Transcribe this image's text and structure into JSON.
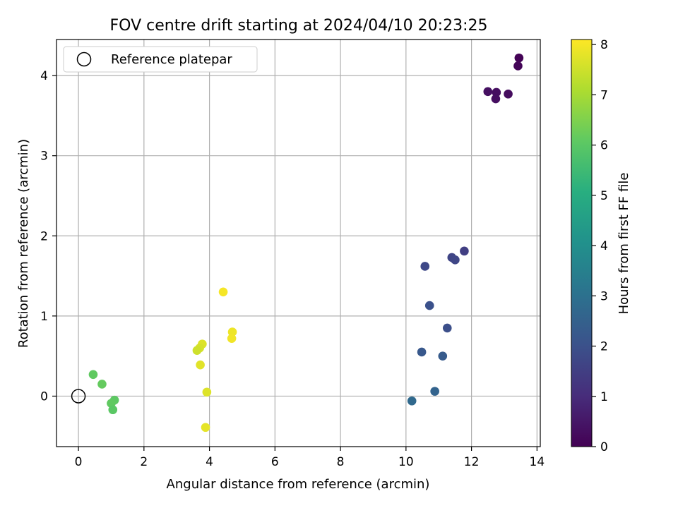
{
  "chart_data": {
    "type": "scatter",
    "title": "FOV centre drift starting at 2024/04/10 20:23:25",
    "xlabel": "Angular distance from reference (arcmin)",
    "ylabel": "Rotation from reference (arcmin)",
    "xlim": [
      -0.67,
      14.1
    ],
    "ylim": [
      -0.63,
      4.45
    ],
    "xticks": [
      "0",
      "2",
      "4",
      "6",
      "8",
      "10",
      "12",
      "14"
    ],
    "yticks": [
      "0",
      "1",
      "2",
      "3",
      "4"
    ],
    "grid": true,
    "legend": {
      "position": "top-left",
      "entries": [
        "Reference platepar"
      ]
    },
    "colorbar": {
      "label": "Hours from first FF file",
      "range": [
        0,
        8.1
      ],
      "ticks": [
        "0",
        "1",
        "2",
        "3",
        "4",
        "5",
        "6",
        "7",
        "8"
      ],
      "colormap": "viridis"
    },
    "reference_point": {
      "x": 0,
      "y": 0
    },
    "points": [
      {
        "x": 13.45,
        "y": 4.22,
        "h": 0.05
      },
      {
        "x": 13.42,
        "y": 4.12,
        "h": 0.1
      },
      {
        "x": 12.5,
        "y": 3.8,
        "h": 0.35
      },
      {
        "x": 12.76,
        "y": 3.79,
        "h": 0.3
      },
      {
        "x": 12.74,
        "y": 3.71,
        "h": 0.3
      },
      {
        "x": 13.12,
        "y": 3.77,
        "h": 0.25
      },
      {
        "x": 11.78,
        "y": 1.81,
        "h": 1.5
      },
      {
        "x": 11.4,
        "y": 1.73,
        "h": 1.65
      },
      {
        "x": 11.5,
        "y": 1.7,
        "h": 1.7
      },
      {
        "x": 10.58,
        "y": 1.62,
        "h": 1.75
      },
      {
        "x": 10.72,
        "y": 1.13,
        "h": 2.0
      },
      {
        "x": 11.26,
        "y": 0.85,
        "h": 1.95
      },
      {
        "x": 10.48,
        "y": 0.55,
        "h": 2.2
      },
      {
        "x": 11.12,
        "y": 0.5,
        "h": 2.3
      },
      {
        "x": 10.88,
        "y": 0.06,
        "h": 2.55
      },
      {
        "x": 10.18,
        "y": -0.06,
        "h": 2.75
      },
      {
        "x": 0.45,
        "y": 0.27,
        "h": 6.1
      },
      {
        "x": 0.72,
        "y": 0.15,
        "h": 6.15
      },
      {
        "x": 1.1,
        "y": -0.05,
        "h": 6.05
      },
      {
        "x": 1.0,
        "y": -0.09,
        "h": 6.1
      },
      {
        "x": 1.05,
        "y": -0.17,
        "h": 6.0
      },
      {
        "x": 4.42,
        "y": 1.3,
        "h": 8.0
      },
      {
        "x": 4.7,
        "y": 0.8,
        "h": 7.9
      },
      {
        "x": 4.68,
        "y": 0.72,
        "h": 7.95
      },
      {
        "x": 3.78,
        "y": 0.65,
        "h": 7.7
      },
      {
        "x": 3.7,
        "y": 0.6,
        "h": 7.6
      },
      {
        "x": 3.62,
        "y": 0.57,
        "h": 7.5
      },
      {
        "x": 3.72,
        "y": 0.39,
        "h": 7.75
      },
      {
        "x": 3.92,
        "y": 0.05,
        "h": 7.7
      },
      {
        "x": 3.88,
        "y": -0.39,
        "h": 7.8
      }
    ]
  }
}
